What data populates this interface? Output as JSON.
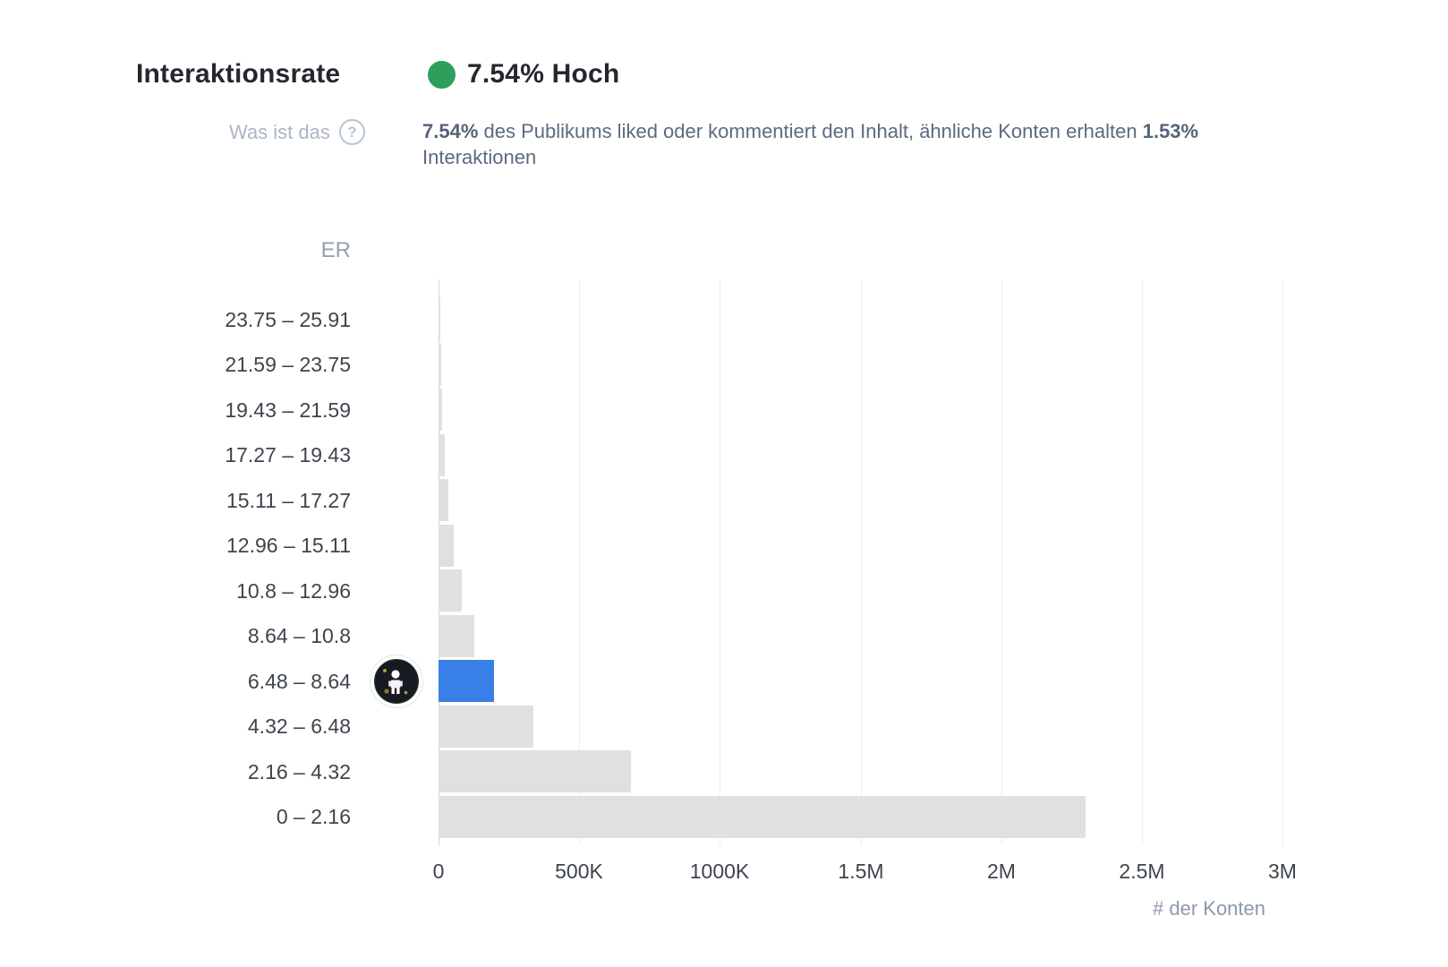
{
  "header": {
    "title": "Interaktionsrate",
    "status": {
      "value": "7.54% Hoch",
      "dot_color": "#2d9e5b"
    },
    "help": {
      "label": "Was ist das",
      "icon": "?"
    },
    "description": {
      "bold1": "7.54%",
      "middle": " des Publikums liked oder kommentiert den Inhalt, ähnliche Konten erhalten ",
      "bold2": "1.53%",
      "line2": "Interaktionen"
    }
  },
  "chart_data": {
    "type": "bar",
    "orientation": "horizontal",
    "ylabel": "ER",
    "xlabel": "# der Konten",
    "categories": [
      "23.75 – 25.91",
      "21.59 – 23.75",
      "19.43 – 21.59",
      "17.27 – 19.43",
      "15.11 – 17.27",
      "12.96 – 15.11",
      "10.8 – 12.96",
      "8.64 – 10.8",
      "6.48 – 8.64",
      "4.32 – 6.48",
      "2.16 – 4.32",
      "0 – 2.16"
    ],
    "values": [
      6000,
      10000,
      14000,
      22000,
      35000,
      54000,
      83000,
      127000,
      197000,
      337000,
      684000,
      2300000
    ],
    "x_tick_labels": [
      "0",
      "500K",
      "1000K",
      "1.5M",
      "2M",
      "2.5M",
      "3M"
    ],
    "x_tick_values": [
      0,
      500000,
      1000000,
      1500000,
      2000000,
      2500000,
      3000000
    ],
    "xlim": [
      0,
      3000000
    ],
    "grid": true,
    "highlight_category": "6.48 – 8.64",
    "highlight_color": "#3880e8",
    "bar_color": "#e0e0e0",
    "avatar_on_highlight": true
  }
}
